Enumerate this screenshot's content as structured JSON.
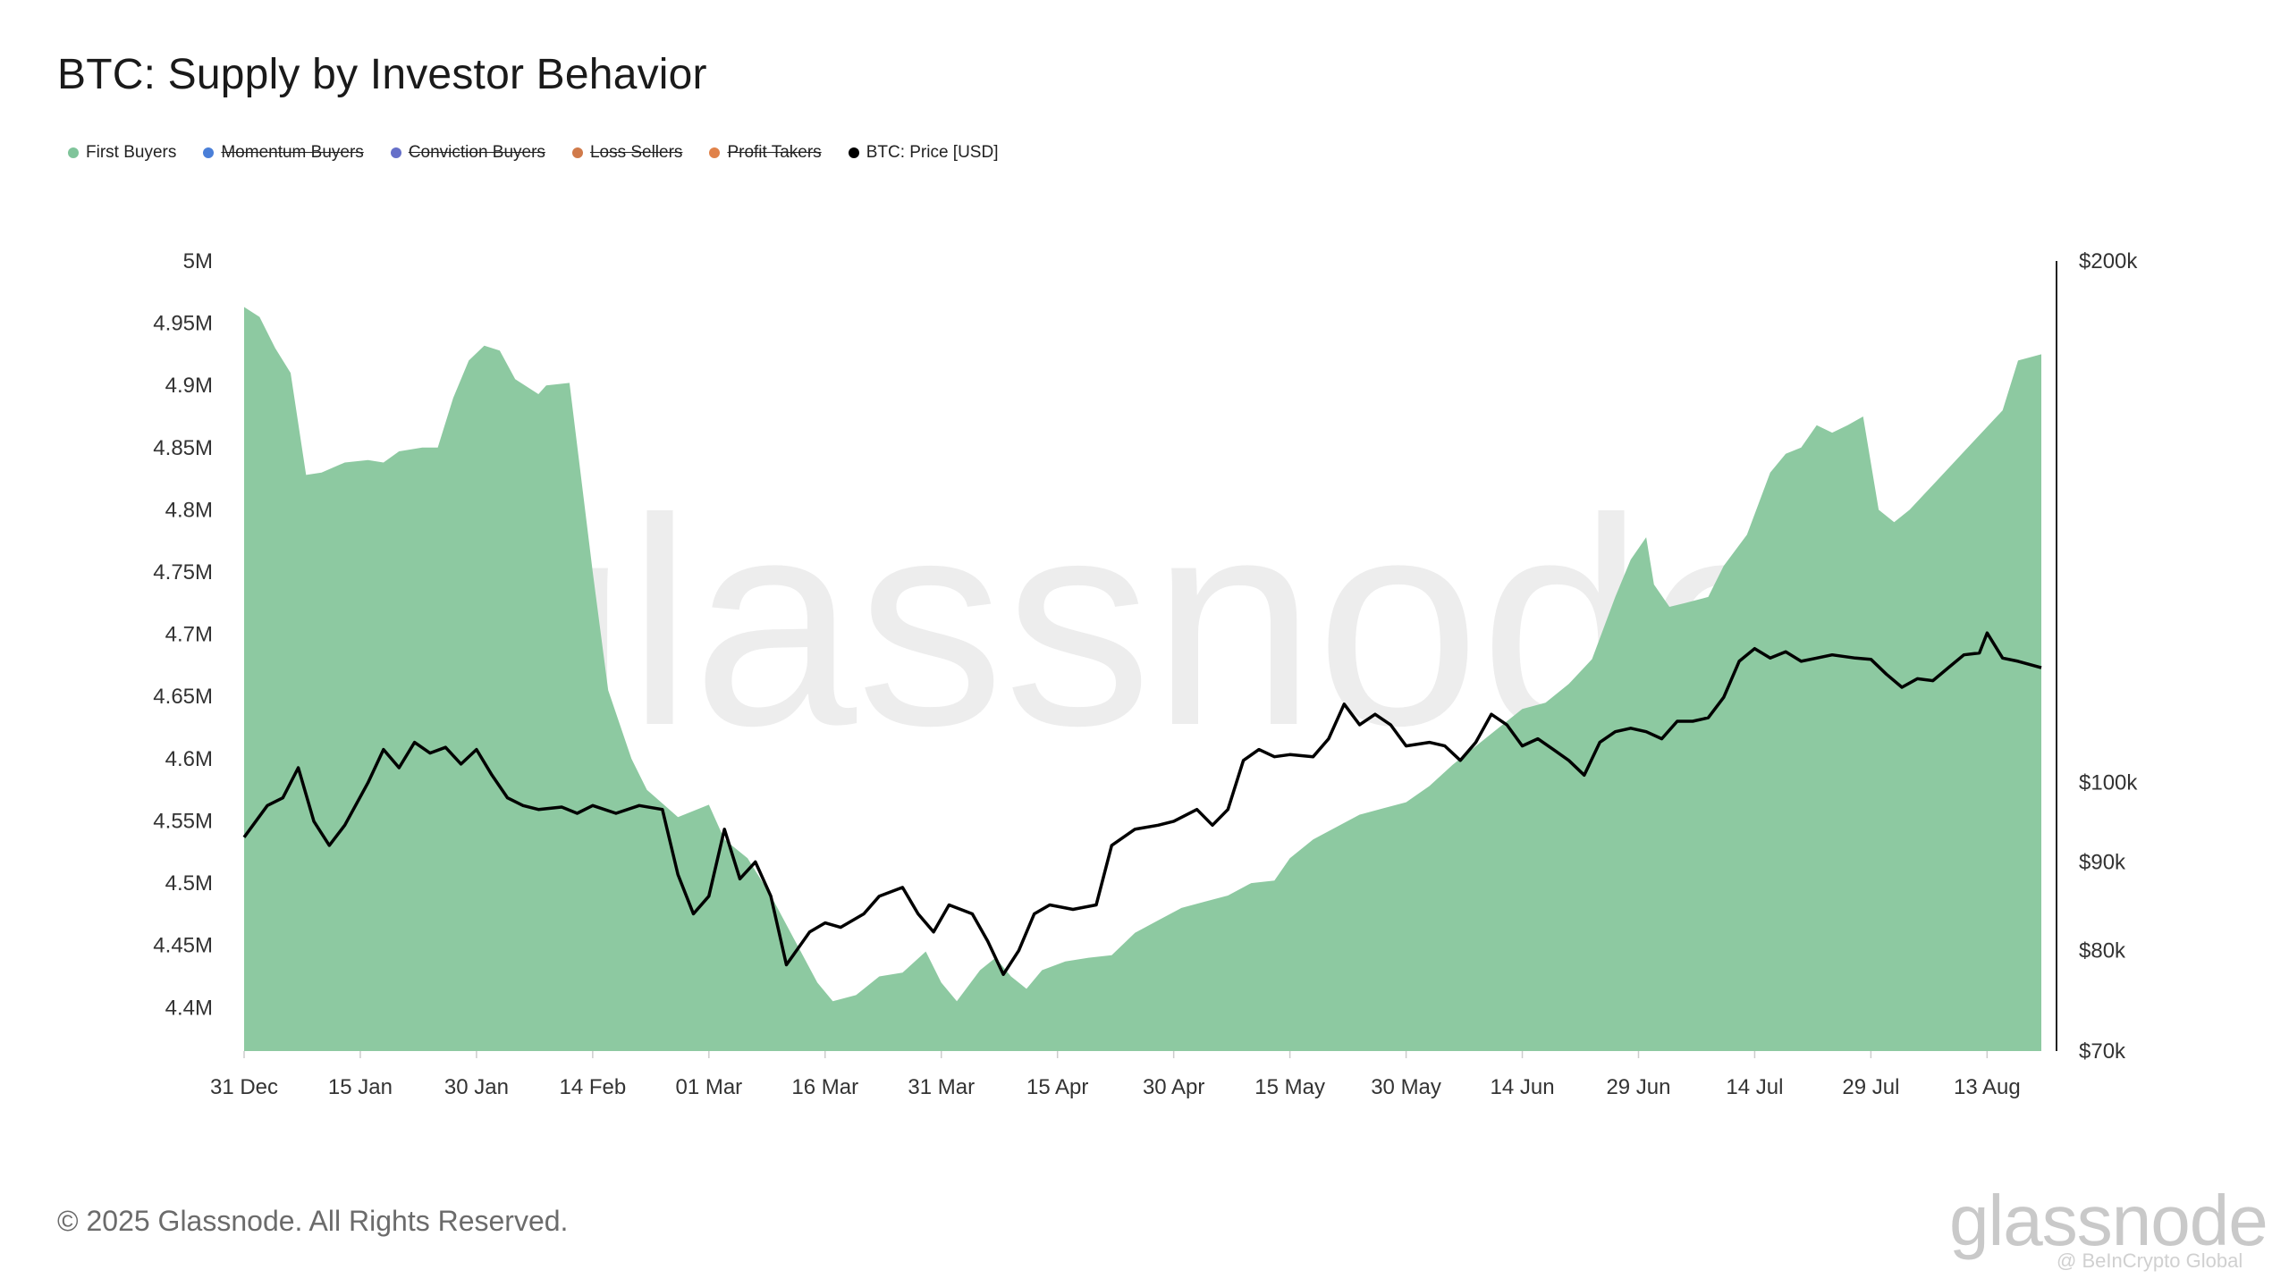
{
  "title": "BTC: Supply by Investor Behavior",
  "legend": [
    {
      "label": "First Buyers",
      "color": "#7fc49a",
      "enabled": true
    },
    {
      "label": "Momentum Buyers",
      "color": "#4a7fd8",
      "enabled": false
    },
    {
      "label": "Conviction Buyers",
      "color": "#6670c9",
      "enabled": false
    },
    {
      "label": "Loss Sellers",
      "color": "#d07a4a",
      "enabled": false
    },
    {
      "label": "Profit Takers",
      "color": "#e0824a",
      "enabled": false
    },
    {
      "label": "BTC: Price [USD]",
      "color": "#000000",
      "enabled": true
    }
  ],
  "watermark": "glassnode",
  "footer": {
    "copyright": "© 2025 Glassnode. All Rights Reserved.",
    "logo": "glassnode",
    "credit": "@ BeInCrypto Global"
  },
  "chart_data": {
    "type": "area",
    "x_axis": {
      "start": "31 Dec",
      "end": "20 Aug",
      "tick_labels": [
        "31 Dec",
        "15 Jan",
        "30 Jan",
        "14 Feb",
        "01 Mar",
        "16 Mar",
        "31 Mar",
        "15 Apr",
        "30 Apr",
        "15 May",
        "30 May",
        "14 Jun",
        "29 Jun",
        "14 Jul",
        "29 Jul",
        "13 Aug"
      ]
    },
    "y_left": {
      "label": "",
      "range": [
        4.365,
        5.0
      ],
      "ticks": [
        4.4,
        4.45,
        4.5,
        4.55,
        4.6,
        4.65,
        4.7,
        4.75,
        4.8,
        4.85,
        4.9,
        4.95,
        5.0
      ],
      "tick_labels": [
        "4.4M",
        "4.45M",
        "4.5M",
        "4.55M",
        "4.6M",
        "4.65M",
        "4.7M",
        "4.75M",
        "4.8M",
        "4.85M",
        "4.9M",
        "4.95M",
        "5M"
      ]
    },
    "y_right": {
      "label": "",
      "scale": "log",
      "range": [
        70000,
        200000
      ],
      "ticks": [
        70000,
        80000,
        90000,
        100000,
        200000
      ],
      "tick_labels": [
        "$70k",
        "$80k",
        "$90k",
        "$100k",
        "$200k"
      ]
    },
    "grid": false,
    "legend_position": "top-left",
    "series": [
      {
        "name": "First Buyers",
        "type": "area",
        "axis": "left",
        "color": "#8dc9a1",
        "points": [
          [
            "31 Dec",
            4.963
          ],
          [
            "02 Jan",
            4.955
          ],
          [
            "04 Jan",
            4.93
          ],
          [
            "06 Jan",
            4.91
          ],
          [
            "08 Jan",
            4.828
          ],
          [
            "10 Jan",
            4.83
          ],
          [
            "13 Jan",
            4.838
          ],
          [
            "16 Jan",
            4.84
          ],
          [
            "18 Jan",
            4.838
          ],
          [
            "20 Jan",
            4.847
          ],
          [
            "23 Jan",
            4.85
          ],
          [
            "25 Jan",
            4.85
          ],
          [
            "27 Jan",
            4.89
          ],
          [
            "29 Jan",
            4.92
          ],
          [
            "31 Jan",
            4.932
          ],
          [
            "02 Feb",
            4.928
          ],
          [
            "04 Feb",
            4.905
          ],
          [
            "07 Feb",
            4.893
          ],
          [
            "08 Feb",
            4.9
          ],
          [
            "11 Feb",
            4.902
          ],
          [
            "14 Feb",
            4.75
          ],
          [
            "16 Feb",
            4.655
          ],
          [
            "19 Feb",
            4.6
          ],
          [
            "21 Feb",
            4.575
          ],
          [
            "25 Feb",
            4.553
          ],
          [
            "01 Mar",
            4.563
          ],
          [
            "03 Mar",
            4.535
          ],
          [
            "06 Mar",
            4.52
          ],
          [
            "09 Mar",
            4.49
          ],
          [
            "12 Mar",
            4.455
          ],
          [
            "15 Mar",
            4.42
          ],
          [
            "17 Mar",
            4.405
          ],
          [
            "20 Mar",
            4.41
          ],
          [
            "23 Mar",
            4.425
          ],
          [
            "26 Mar",
            4.428
          ],
          [
            "29 Mar",
            4.445
          ],
          [
            "31 Mar",
            4.42
          ],
          [
            "02 Apr",
            4.405
          ],
          [
            "05 Apr",
            4.43
          ],
          [
            "07 Apr",
            4.44
          ],
          [
            "09 Apr",
            4.425
          ],
          [
            "11 Apr",
            4.415
          ],
          [
            "13 Apr",
            4.43
          ],
          [
            "16 Apr",
            4.437
          ],
          [
            "19 Apr",
            4.44
          ],
          [
            "22 Apr",
            4.442
          ],
          [
            "25 Apr",
            4.46
          ],
          [
            "28 Apr",
            4.47
          ],
          [
            "01 May",
            4.48
          ],
          [
            "04 May",
            4.485
          ],
          [
            "07 May",
            4.49
          ],
          [
            "10 May",
            4.5
          ],
          [
            "13 May",
            4.502
          ],
          [
            "15 May",
            4.52
          ],
          [
            "18 May",
            4.535
          ],
          [
            "21 May",
            4.545
          ],
          [
            "24 May",
            4.555
          ],
          [
            "27 May",
            4.56
          ],
          [
            "30 May",
            4.565
          ],
          [
            "02 Jun",
            4.578
          ],
          [
            "05 Jun",
            4.595
          ],
          [
            "08 Jun",
            4.61
          ],
          [
            "11 Jun",
            4.625
          ],
          [
            "14 Jun",
            4.64
          ],
          [
            "17 Jun",
            4.645
          ],
          [
            "20 Jun",
            4.66
          ],
          [
            "23 Jun",
            4.68
          ],
          [
            "26 Jun",
            4.73
          ],
          [
            "28 Jun",
            4.76
          ],
          [
            "30 Jun",
            4.778
          ],
          [
            "01 Jul",
            4.74
          ],
          [
            "03 Jul",
            4.722
          ],
          [
            "05 Jul",
            4.725
          ],
          [
            "08 Jul",
            4.73
          ],
          [
            "10 Jul",
            4.755
          ],
          [
            "13 Jul",
            4.78
          ],
          [
            "16 Jul",
            4.83
          ],
          [
            "18 Jul",
            4.845
          ],
          [
            "20 Jul",
            4.85
          ],
          [
            "22 Jul",
            4.868
          ],
          [
            "24 Jul",
            4.862
          ],
          [
            "26 Jul",
            4.868
          ],
          [
            "28 Jul",
            4.875
          ],
          [
            "30 Jul",
            4.8
          ],
          [
            "01 Aug",
            4.79
          ],
          [
            "03 Aug",
            4.8
          ],
          [
            "06 Aug",
            4.82
          ],
          [
            "09 Aug",
            4.84
          ],
          [
            "12 Aug",
            4.86
          ],
          [
            "15 Aug",
            4.88
          ],
          [
            "17 Aug",
            4.92
          ],
          [
            "20 Aug",
            4.925
          ]
        ]
      },
      {
        "name": "BTC: Price [USD]",
        "type": "line",
        "axis": "right",
        "color": "#000000",
        "points": [
          [
            "31 Dec",
            93000
          ],
          [
            "03 Jan",
            97000
          ],
          [
            "05 Jan",
            98000
          ],
          [
            "07 Jan",
            102000
          ],
          [
            "09 Jan",
            95000
          ],
          [
            "11 Jan",
            92000
          ],
          [
            "13 Jan",
            94500
          ],
          [
            "16 Jan",
            100000
          ],
          [
            "18 Jan",
            104500
          ],
          [
            "20 Jan",
            102000
          ],
          [
            "22 Jan",
            105500
          ],
          [
            "24 Jan",
            104000
          ],
          [
            "26 Jan",
            104800
          ],
          [
            "28 Jan",
            102500
          ],
          [
            "30 Jan",
            104500
          ],
          [
            "01 Feb",
            101000
          ],
          [
            "03 Feb",
            98000
          ],
          [
            "05 Feb",
            97000
          ],
          [
            "07 Feb",
            96500
          ],
          [
            "10 Feb",
            96800
          ],
          [
            "12 Feb",
            96000
          ],
          [
            "14 Feb",
            97000
          ],
          [
            "17 Feb",
            96000
          ],
          [
            "20 Feb",
            97000
          ],
          [
            "23 Feb",
            96500
          ],
          [
            "25 Feb",
            88500
          ],
          [
            "27 Feb",
            84000
          ],
          [
            "01 Mar",
            86000
          ],
          [
            "03 Mar",
            94000
          ],
          [
            "05 Mar",
            88000
          ],
          [
            "07 Mar",
            90000
          ],
          [
            "09 Mar",
            86000
          ],
          [
            "11 Mar",
            78500
          ],
          [
            "14 Mar",
            82000
          ],
          [
            "16 Mar",
            83000
          ],
          [
            "18 Mar",
            82500
          ],
          [
            "21 Mar",
            84000
          ],
          [
            "23 Mar",
            86000
          ],
          [
            "26 Mar",
            87000
          ],
          [
            "28 Mar",
            84000
          ],
          [
            "30 Mar",
            82000
          ],
          [
            "01 Apr",
            85000
          ],
          [
            "04 Apr",
            84000
          ],
          [
            "06 Apr",
            81000
          ],
          [
            "08 Apr",
            77500
          ],
          [
            "10 Apr",
            80000
          ],
          [
            "12 Apr",
            84000
          ],
          [
            "14 Apr",
            85000
          ],
          [
            "17 Apr",
            84500
          ],
          [
            "20 Apr",
            85000
          ],
          [
            "22 Apr",
            92000
          ],
          [
            "25 Apr",
            94000
          ],
          [
            "28 Apr",
            94500
          ],
          [
            "30 Apr",
            95000
          ],
          [
            "03 May",
            96500
          ],
          [
            "05 May",
            94500
          ],
          [
            "07 May",
            96500
          ],
          [
            "09 May",
            103000
          ],
          [
            "11 May",
            104500
          ],
          [
            "13 May",
            103500
          ],
          [
            "15 May",
            103800
          ],
          [
            "18 May",
            103500
          ],
          [
            "20 May",
            106000
          ],
          [
            "22 May",
            111000
          ],
          [
            "24 May",
            108000
          ],
          [
            "26 May",
            109500
          ],
          [
            "28 May",
            108000
          ],
          [
            "30 May",
            105000
          ],
          [
            "02 Jun",
            105500
          ],
          [
            "04 Jun",
            105000
          ],
          [
            "06 Jun",
            103000
          ],
          [
            "08 Jun",
            105500
          ],
          [
            "10 Jun",
            109500
          ],
          [
            "12 Jun",
            108000
          ],
          [
            "14 Jun",
            105000
          ],
          [
            "16 Jun",
            106000
          ],
          [
            "18 Jun",
            104500
          ],
          [
            "20 Jun",
            103000
          ],
          [
            "22 Jun",
            101000
          ],
          [
            "24 Jun",
            105500
          ],
          [
            "26 Jun",
            107000
          ],
          [
            "28 Jun",
            107500
          ],
          [
            "30 Jun",
            107000
          ],
          [
            "02 Jul",
            106000
          ],
          [
            "04 Jul",
            108500
          ],
          [
            "06 Jul",
            108500
          ],
          [
            "08 Jul",
            109000
          ],
          [
            "10 Jul",
            112000
          ],
          [
            "12 Jul",
            117500
          ],
          [
            "14 Jul",
            119500
          ],
          [
            "16 Jul",
            118000
          ],
          [
            "18 Jul",
            119000
          ],
          [
            "20 Jul",
            117500
          ],
          [
            "22 Jul",
            118000
          ],
          [
            "24 Jul",
            118500
          ],
          [
            "27 Jul",
            118000
          ],
          [
            "29 Jul",
            117800
          ],
          [
            "31 Jul",
            115500
          ],
          [
            "02 Aug",
            113500
          ],
          [
            "04 Aug",
            114800
          ],
          [
            "06 Aug",
            114500
          ],
          [
            "08 Aug",
            116500
          ],
          [
            "10 Aug",
            118500
          ],
          [
            "12 Aug",
            118800
          ],
          [
            "13 Aug",
            122000
          ],
          [
            "15 Aug",
            118000
          ],
          [
            "17 Aug",
            117500
          ],
          [
            "20 Aug",
            116500
          ]
        ]
      }
    ]
  }
}
